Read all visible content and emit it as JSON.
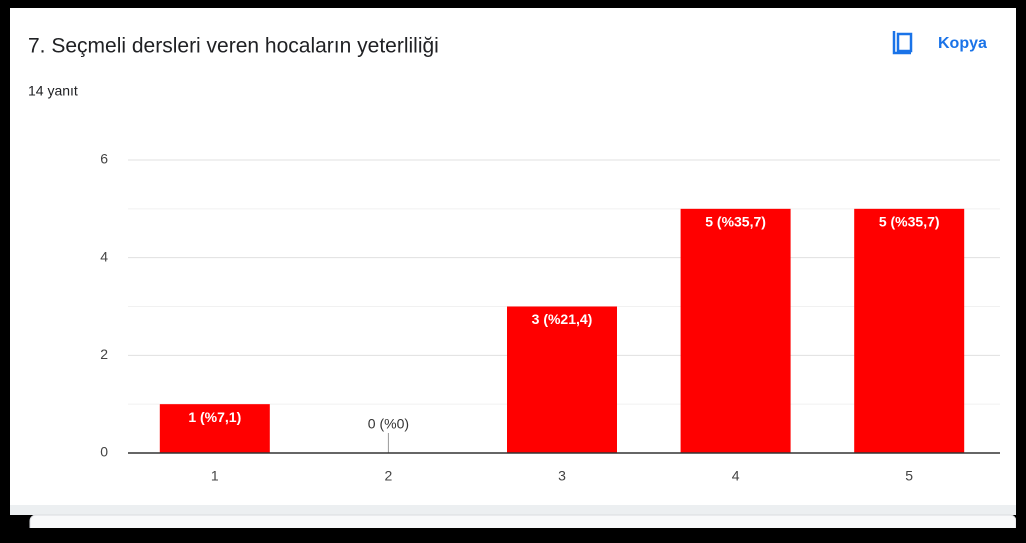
{
  "title": "7. Seçmeli dersleri veren hocaların yeterliliği",
  "copy_button": "Kopya",
  "response_count": "14 yanıt",
  "chart_data": {
    "type": "bar",
    "categories": [
      "1",
      "2",
      "3",
      "4",
      "5"
    ],
    "values": [
      1,
      0,
      3,
      5,
      5
    ],
    "value_labels": [
      "1 (%7,1)",
      "0 (%0)",
      "3 (%21,4)",
      "5 (%35,7)",
      "5 (%35,7)"
    ],
    "color": "#ff0000",
    "ylim": [
      0,
      6
    ],
    "yticks": [
      0,
      2,
      4,
      6
    ],
    "minor_yticks": [
      1,
      3,
      5
    ],
    "grid": true
  }
}
